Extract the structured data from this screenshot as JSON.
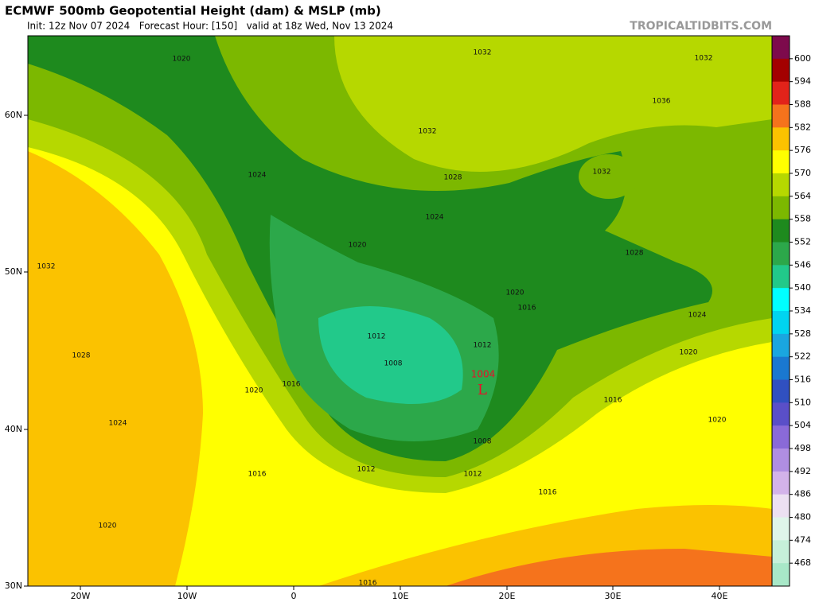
{
  "header": {
    "title": "ECMWF 500mb Geopotential Height (dam) & MSLP (mb)",
    "subtitle": "Init: 12z Nov 07 2024   Forecast Hour: [150]   valid at 18z Wed, Nov 13 2024",
    "credit": "TROPICALTIDBITS.COM"
  },
  "axes": {
    "latitudes": [
      "60N",
      "50N",
      "40N",
      "30N"
    ],
    "longitudes": [
      "20W",
      "10W",
      "0",
      "10E",
      "20E",
      "30E",
      "40E"
    ]
  },
  "colorbar": {
    "levels": [
      600,
      594,
      588,
      582,
      576,
      570,
      564,
      558,
      552,
      546,
      540,
      534,
      528,
      522,
      516,
      510,
      504,
      498,
      492,
      486,
      480,
      474,
      468
    ],
    "colors": [
      "#7d0a4c",
      "#a30000",
      "#e2231a",
      "#f5731c",
      "#fbc200",
      "#ffff00",
      "#b6d800",
      "#7cb800",
      "#1e8a1e",
      "#2ca84a",
      "#22c98a",
      "#00ffff",
      "#00d4f0",
      "#1aa6e0",
      "#1a78d0",
      "#3050c0",
      "#5a4fc8",
      "#8a6ad8",
      "#b08ee2",
      "#d3b3ea",
      "#ece0f2",
      "#dff5ea",
      "#c6f0da",
      "#a8e8c8"
    ]
  },
  "contour_labels": [
    "1020",
    "1032",
    "1032",
    "1036",
    "1032",
    "1028",
    "1032",
    "1024",
    "1024",
    "1020",
    "1032",
    "1028",
    "1020",
    "1016",
    "1024",
    "1012",
    "1012",
    "1020",
    "1008",
    "1028",
    "1020",
    "1016",
    "1016",
    "1024",
    "1020",
    "1008",
    "1012",
    "1012",
    "1016",
    "1016",
    "1020",
    "1016"
  ],
  "low": {
    "symbol": "L",
    "pressure": "1004"
  }
}
